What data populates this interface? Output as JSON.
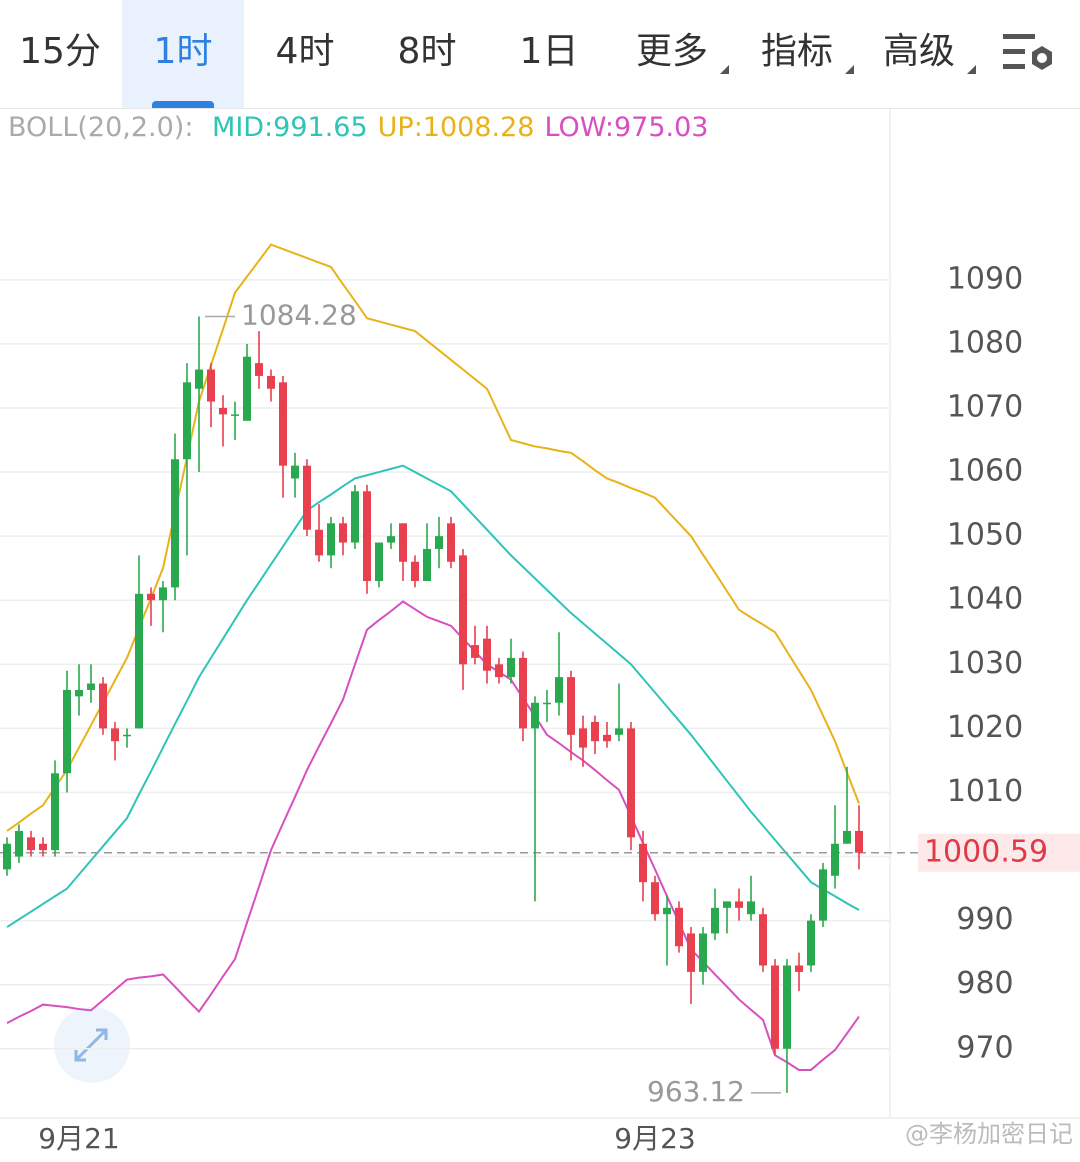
{
  "tabs": [
    {
      "label": "15分"
    },
    {
      "label": "1时"
    },
    {
      "label": "4时"
    },
    {
      "label": "8时"
    },
    {
      "label": "1日"
    },
    {
      "label": "更多",
      "menu": true
    },
    {
      "label": "指标",
      "menu": true
    },
    {
      "label": "高级",
      "menu": true
    }
  ],
  "active_tab": 1,
  "chart_data": {
    "type": "candlestick",
    "indicator_label": "BOLL(20,2.0):",
    "categories": [
      null,
      null,
      null,
      null,
      null,
      null,
      "9月21",
      null,
      null,
      null,
      null,
      null,
      null,
      null,
      null,
      null,
      null,
      null,
      null,
      null,
      null,
      null,
      null,
      null,
      null,
      null,
      null,
      null,
      null,
      null,
      null,
      null,
      null,
      null,
      null,
      null,
      null,
      null,
      null,
      null,
      null,
      null,
      null,
      null,
      null,
      null,
      null,
      null,
      null,
      null,
      null,
      null,
      null,
      null,
      "9月23",
      null,
      null,
      null,
      null,
      null,
      null,
      null,
      null,
      null,
      null,
      null,
      null,
      null,
      null,
      null,
      null,
      null
    ],
    "open": [
      998,
      1000,
      1003,
      1002,
      1001,
      1013,
      1025,
      1026,
      1027,
      1020,
      1019,
      1020,
      1041,
      1040,
      1042,
      1062,
      1073,
      1076,
      1070,
      1069,
      1068,
      1077,
      1075,
      1074,
      1059,
      1061,
      1051,
      1047,
      1052,
      1049,
      1057,
      1043,
      1049,
      1052,
      1046,
      1043,
      1048,
      1052,
      1047,
      1033,
      1034,
      1030,
      1028,
      1031,
      1020,
      1024,
      1024,
      1028,
      1020,
      1021,
      1019,
      1019,
      1020,
      1002,
      996,
      991,
      992,
      988,
      982,
      988,
      992,
      993,
      991,
      991,
      983,
      970,
      983,
      983,
      990,
      997,
      1002,
      1004
    ],
    "high": [
      1003,
      1005,
      1004,
      1003,
      1015,
      1029,
      1030,
      1030,
      1028,
      1021,
      1020,
      1047,
      1042,
      1043,
      1066,
      1077,
      1084.28,
      1077,
      1072,
      1071,
      1080,
      1082,
      1076,
      1075,
      1063,
      1062,
      1055,
      1053,
      1053,
      1058,
      1058,
      1049,
      1052,
      1052,
      1047,
      1052,
      1053,
      1053,
      1048,
      1036,
      1036,
      1031,
      1034,
      1032,
      1025,
      1026,
      1035,
      1029,
      1022,
      1022,
      1021,
      1027,
      1021,
      1004,
      997,
      994,
      993,
      989,
      989,
      995,
      993,
      995,
      997,
      992,
      984,
      984,
      985,
      991,
      999,
      1008,
      1014,
      1008
    ],
    "low": [
      997,
      999,
      1000,
      1000,
      1000,
      1010,
      1022,
      1024,
      1019,
      1015,
      1017,
      1020,
      1036,
      1035,
      1040,
      1047,
      1060,
      1067,
      1064,
      1065,
      1068,
      1073,
      1071,
      1056,
      1056,
      1050,
      1046,
      1045,
      1047,
      1048,
      1041,
      1042,
      1048,
      1043,
      1042,
      1043,
      1045,
      1045,
      1026,
      1030,
      1027,
      1027,
      1027,
      1018,
      993,
      1021,
      1022,
      1015,
      1014,
      1016,
      1017,
      1018,
      1001,
      993,
      990,
      983,
      985,
      977,
      980,
      987,
      988,
      990,
      990,
      982,
      969,
      963.12,
      979,
      982,
      989,
      995,
      1002,
      998
    ],
    "close": [
      1002,
      1004,
      1001,
      1001,
      1013,
      1026,
      1026,
      1027,
      1020,
      1018,
      1019,
      1041,
      1040,
      1042,
      1062,
      1074,
      1076,
      1071,
      1069,
      1069,
      1078,
      1075,
      1073,
      1061,
      1061,
      1051,
      1047,
      1052,
      1049,
      1057,
      1043,
      1049,
      1050,
      1046,
      1043,
      1048,
      1050,
      1046,
      1030,
      1031,
      1029,
      1028,
      1031,
      1020,
      1024,
      1024,
      1028,
      1019,
      1017,
      1018,
      1018,
      1020,
      1003,
      996,
      991,
      992,
      986,
      982,
      988,
      992,
      993,
      992,
      993,
      983,
      970,
      983,
      982,
      990,
      998,
      1002,
      1004,
      1000.59
    ],
    "up_color": "#2aa84f",
    "down_color": "#e8404e",
    "series": [
      {
        "name": "MID:991.65",
        "color": "#2ec4b6",
        "values": [
          989,
          990.2,
          991.4,
          992.6,
          993.8,
          995,
          997.2,
          999.4,
          1001.6,
          1003.8,
          1006,
          1009.7,
          1013.3,
          1017,
          1020.7,
          1024.3,
          1028,
          1031,
          1034,
          1037,
          1040,
          1042.8,
          1045.6,
          1048.4,
          1051.2,
          1054,
          1055.3,
          1056.5,
          1057.8,
          1059,
          1059.5,
          1060,
          1060.5,
          1061,
          1060,
          1059,
          1058,
          1057,
          1055,
          1053,
          1051,
          1049,
          1047,
          1045.2,
          1043.4,
          1041.6,
          1039.8,
          1038,
          1036.4,
          1034.8,
          1033.2,
          1031.6,
          1030,
          1027.8,
          1025.6,
          1023.4,
          1021.2,
          1019,
          1016.6,
          1014.2,
          1011.8,
          1009.4,
          1007,
          1004.8,
          1002.6,
          1000.4,
          998.2,
          996,
          994.9,
          993.8,
          992.7,
          991.65
        ]
      },
      {
        "name": "UP:1008.28",
        "color": "#e8b21a",
        "values": [
          1004,
          1005.3,
          1006.7,
          1008,
          1010.8,
          1013.5,
          1017,
          1020.5,
          1024,
          1027.5,
          1031,
          1035.7,
          1040.3,
          1045,
          1053.7,
          1062.3,
          1071,
          1076.7,
          1082.3,
          1088,
          1090.5,
          1093,
          1095.5,
          1094.8,
          1094.1,
          1093.4,
          1092.7,
          1092,
          1089.3,
          1086.7,
          1084,
          1083.5,
          1083,
          1082.5,
          1082,
          1080.5,
          1079,
          1077.5,
          1076,
          1074.5,
          1073,
          1069,
          1065,
          1064.5,
          1064,
          1063.7,
          1063.3,
          1063,
          1061.7,
          1060.3,
          1059,
          1058.3,
          1057.5,
          1056.8,
          1056,
          1054,
          1052,
          1050,
          1047.1,
          1044.3,
          1041.4,
          1038.5,
          1037.3,
          1036.2,
          1035,
          1032,
          1029,
          1026,
          1022,
          1018,
          1013.1,
          1008.28
        ]
      },
      {
        "name": "LOW:975.03",
        "color": "#d84fbf",
        "values": [
          974,
          975,
          975.9,
          976.9,
          976.7,
          976.5,
          976.2,
          976,
          977.6,
          979.2,
          980.8,
          981.1,
          981.3,
          981.6,
          979.7,
          977.7,
          975.8,
          978.5,
          981.3,
          984,
          989.7,
          995.3,
          1001,
          1005.2,
          1009.3,
          1013.5,
          1017.2,
          1020.8,
          1024.5,
          1030,
          1035.4,
          1036.9,
          1038.3,
          1039.8,
          1038.6,
          1037.4,
          1036.7,
          1036,
          1034,
          1032,
          1030,
          1028.8,
          1027.6,
          1024.7,
          1021.9,
          1019,
          1017.7,
          1016.3,
          1015,
          1013.5,
          1011.9,
          1010.4,
          1006.3,
          1002.1,
          998,
          993.8,
          989.7,
          985.5,
          983.6,
          981.6,
          979.7,
          977.7,
          976.1,
          974.5,
          969,
          967.9,
          966.7,
          966.7,
          968.3,
          969.8,
          972.4,
          975.03
        ]
      }
    ],
    "ylim": [
      959.2,
      1116.5
    ],
    "yticks": [
      970,
      980,
      990,
      1000,
      1010,
      1020,
      1030,
      1040,
      1050,
      1060,
      1070,
      1080,
      1090
    ],
    "grid": true,
    "high_label": 1084.28,
    "low_label": 963.12,
    "last_price": 1000.59
  },
  "watermark": "@李杨加密日记"
}
